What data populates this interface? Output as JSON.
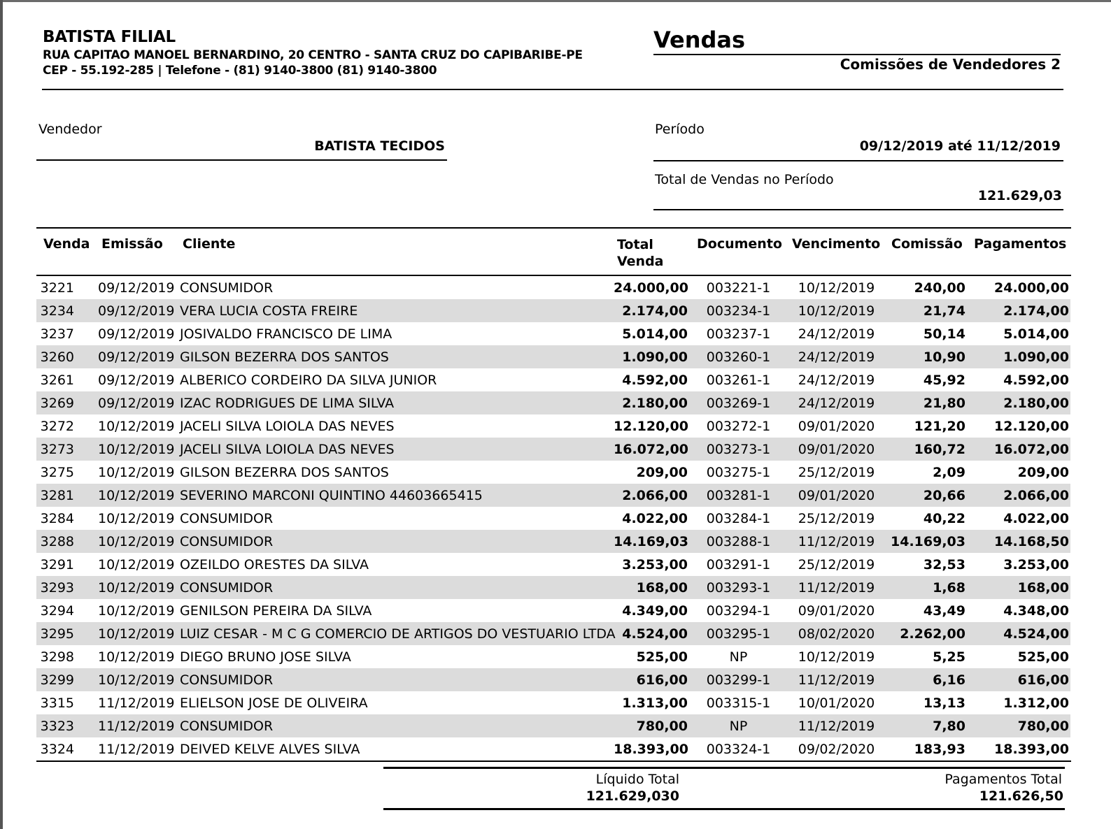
{
  "company": {
    "name": "BATISTA FILIAL",
    "address": "RUA CAPITAO MANOEL BERNARDINO, 20 CENTRO - SANTA CRUZ DO CAPIBARIBE-PE",
    "contact": "CEP - 55.192-285 | Telefone - (81) 9140-3800 (81) 9140-3800"
  },
  "report": {
    "title": "Vendas",
    "subtitle": "Comissões de Vendedores 2"
  },
  "vendedor": {
    "label": "Vendedor",
    "value": "BATISTA TECIDOS"
  },
  "periodo": {
    "label": "Período",
    "value": "09/12/2019 até 11/12/2019"
  },
  "total_vendas": {
    "label": "Total de Vendas no Período",
    "value": "121.629,03"
  },
  "columns": {
    "venda": "Venda",
    "emissao": "Emissão",
    "cliente": "Cliente",
    "total_venda": "Total Venda",
    "documento": "Documento",
    "vencimento": "Vencimento",
    "comissao": "Comissão",
    "pagamentos": "Pagamentos"
  },
  "rows": [
    [
      "3221",
      "09/12/2019",
      "CONSUMIDOR",
      "24.000,00",
      "003221-1",
      "10/12/2019",
      "240,00",
      "24.000,00"
    ],
    [
      "3234",
      "09/12/2019",
      "VERA LUCIA COSTA FREIRE",
      "2.174,00",
      "003234-1",
      "10/12/2019",
      "21,74",
      "2.174,00"
    ],
    [
      "3237",
      "09/12/2019",
      "JOSIVALDO FRANCISCO DE LIMA",
      "5.014,00",
      "003237-1",
      "24/12/2019",
      "50,14",
      "5.014,00"
    ],
    [
      "3260",
      "09/12/2019",
      "GILSON BEZERRA DOS SANTOS",
      "1.090,00",
      "003260-1",
      "24/12/2019",
      "10,90",
      "1.090,00"
    ],
    [
      "3261",
      "09/12/2019",
      "ALBERICO CORDEIRO DA SILVA JUNIOR",
      "4.592,00",
      "003261-1",
      "24/12/2019",
      "45,92",
      "4.592,00"
    ],
    [
      "3269",
      "09/12/2019",
      "IZAC RODRIGUES DE LIMA SILVA",
      "2.180,00",
      "003269-1",
      "24/12/2019",
      "21,80",
      "2.180,00"
    ],
    [
      "3272",
      "10/12/2019",
      "JACELI SILVA LOIOLA DAS NEVES",
      "12.120,00",
      "003272-1",
      "09/01/2020",
      "121,20",
      "12.120,00"
    ],
    [
      "3273",
      "10/12/2019",
      "JACELI SILVA LOIOLA DAS NEVES",
      "16.072,00",
      "003273-1",
      "09/01/2020",
      "160,72",
      "16.072,00"
    ],
    [
      "3275",
      "10/12/2019",
      "GILSON BEZERRA DOS SANTOS",
      "209,00",
      "003275-1",
      "25/12/2019",
      "2,09",
      "209,00"
    ],
    [
      "3281",
      "10/12/2019",
      "SEVERINO MARCONI QUINTINO 44603665415",
      "2.066,00",
      "003281-1",
      "09/01/2020",
      "20,66",
      "2.066,00"
    ],
    [
      "3284",
      "10/12/2019",
      "CONSUMIDOR",
      "4.022,00",
      "003284-1",
      "25/12/2019",
      "40,22",
      "4.022,00"
    ],
    [
      "3288",
      "10/12/2019",
      "CONSUMIDOR",
      "14.169,03",
      "003288-1",
      "11/12/2019",
      "14.169,03",
      "14.168,50"
    ],
    [
      "3291",
      "10/12/2019",
      "OZEILDO ORESTES DA SILVA",
      "3.253,00",
      "003291-1",
      "25/12/2019",
      "32,53",
      "3.253,00"
    ],
    [
      "3293",
      "10/12/2019",
      "CONSUMIDOR",
      "168,00",
      "003293-1",
      "11/12/2019",
      "1,68",
      "168,00"
    ],
    [
      "3294",
      "10/12/2019",
      "GENILSON PEREIRA DA SILVA",
      "4.349,00",
      "003294-1",
      "09/01/2020",
      "43,49",
      "4.348,00"
    ],
    [
      "3295",
      "10/12/2019",
      "LUIZ CESAR - M C G COMERCIO DE ARTIGOS DO VESTUARIO LTDA",
      "4.524,00",
      "003295-1",
      "08/02/2020",
      "2.262,00",
      "4.524,00"
    ],
    [
      "3298",
      "10/12/2019",
      "DIEGO BRUNO JOSE SILVA",
      "525,00",
      "NP",
      "10/12/2019",
      "5,25",
      "525,00"
    ],
    [
      "3299",
      "10/12/2019",
      "CONSUMIDOR",
      "616,00",
      "003299-1",
      "11/12/2019",
      "6,16",
      "616,00"
    ],
    [
      "3315",
      "11/12/2019",
      "ELIELSON JOSE DE OLIVEIRA",
      "1.313,00",
      "003315-1",
      "10/01/2020",
      "13,13",
      "1.312,00"
    ],
    [
      "3323",
      "11/12/2019",
      "CONSUMIDOR",
      "780,00",
      "NP",
      "11/12/2019",
      "7,80",
      "780,00"
    ],
    [
      "3324",
      "11/12/2019",
      "DEIVED KELVE ALVES SILVA",
      "18.393,00",
      "003324-1",
      "09/02/2020",
      "183,93",
      "18.393,00"
    ]
  ],
  "totals": {
    "liquido_label": "Líquido Total",
    "liquido_value": "121.629,030",
    "pagamentos_label": "Pagamentos Total",
    "pagamentos_value": "121.626,50"
  }
}
